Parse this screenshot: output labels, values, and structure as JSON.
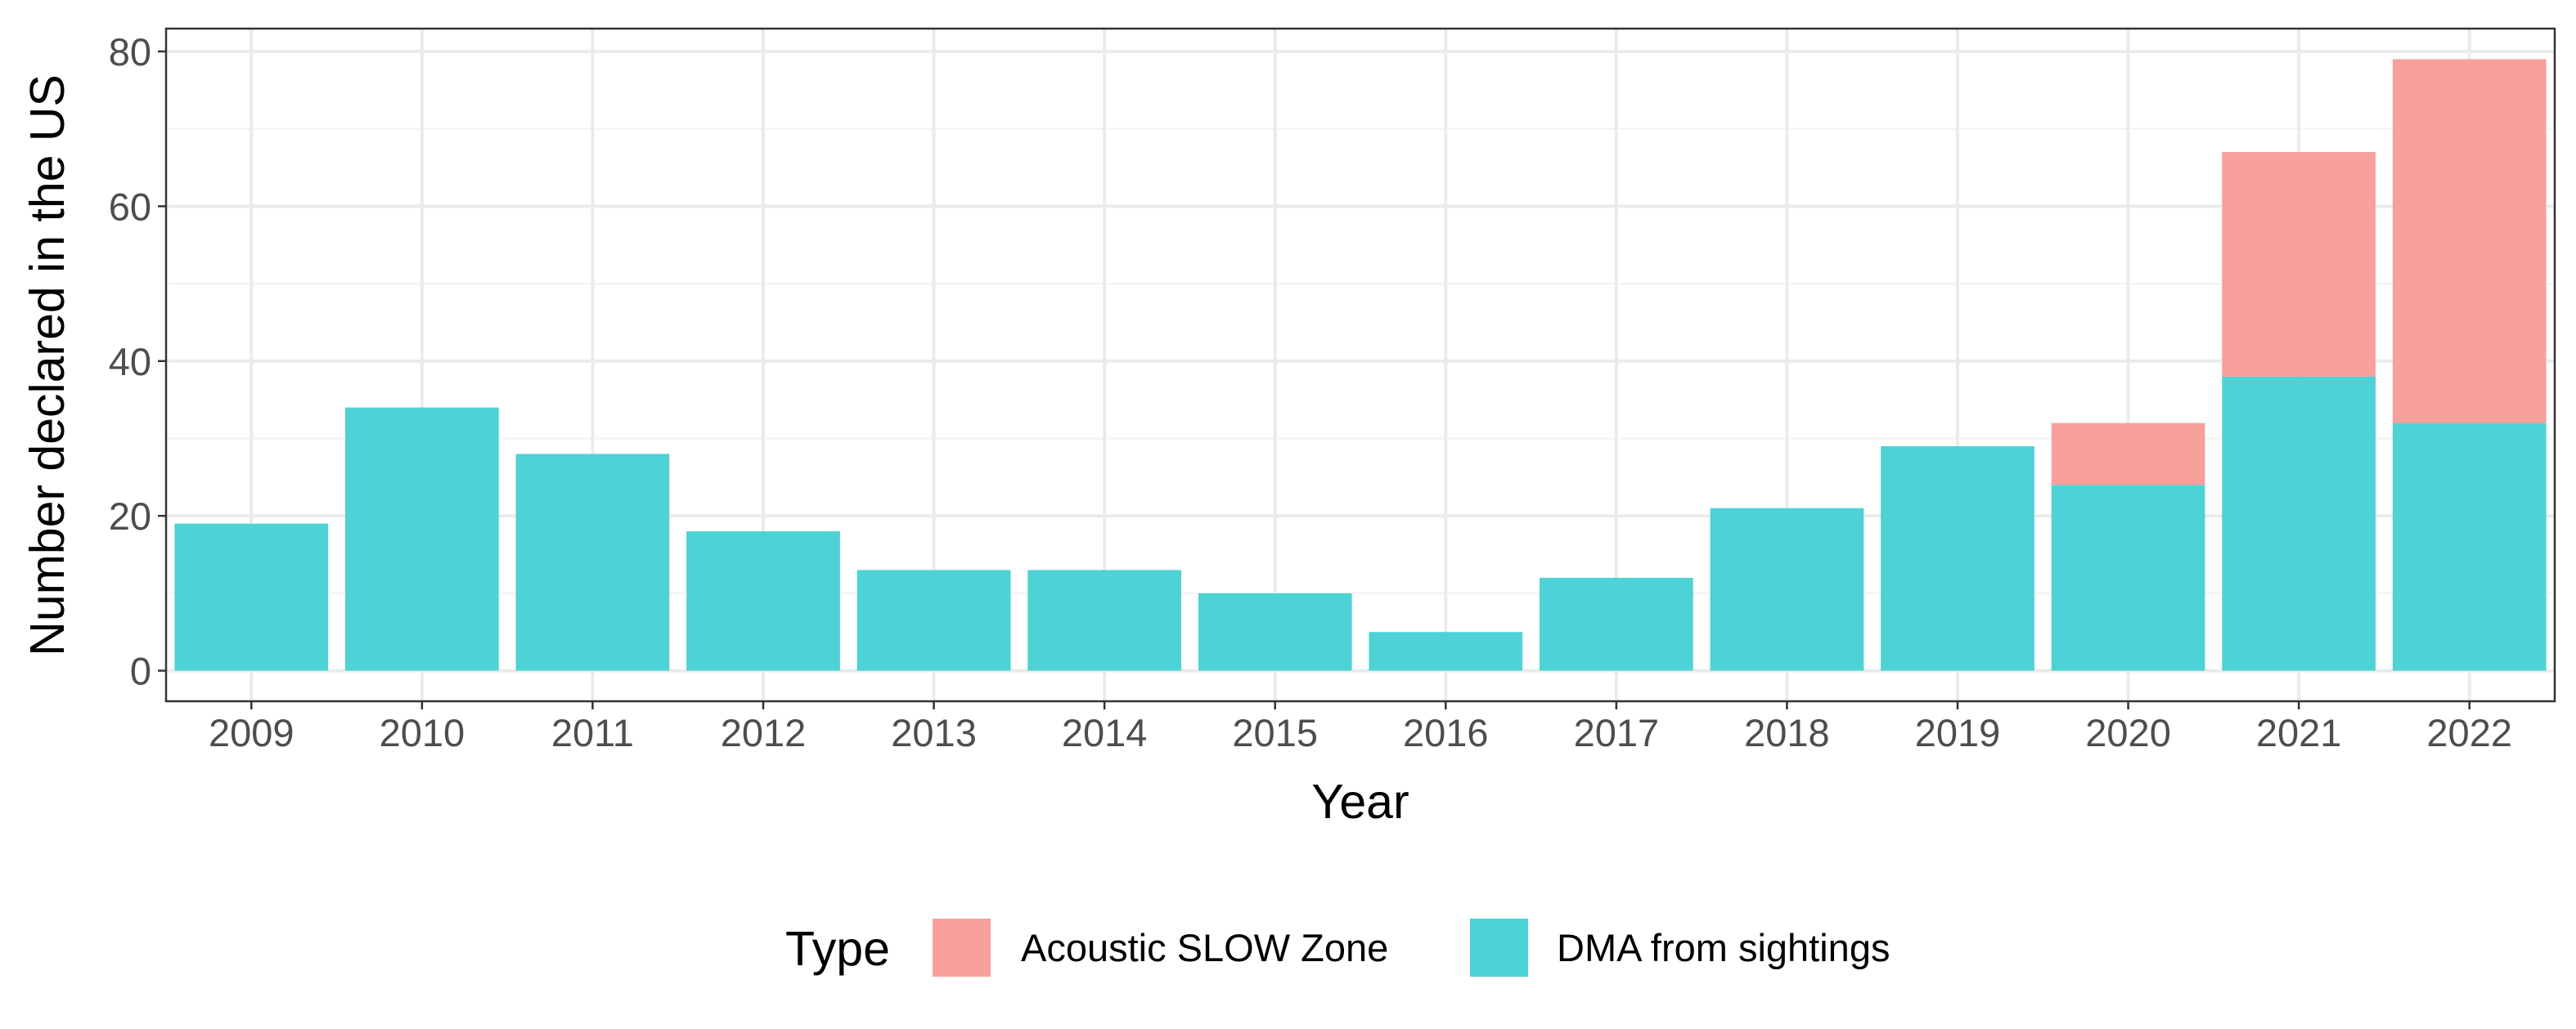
{
  "chart_data": {
    "type": "bar",
    "stacked": true,
    "xlabel": "Year",
    "ylabel": "Number declared in the US",
    "categories": [
      "2009",
      "2010",
      "2011",
      "2012",
      "2013",
      "2014",
      "2015",
      "2016",
      "2017",
      "2018",
      "2019",
      "2020",
      "2021",
      "2022"
    ],
    "series": [
      {
        "name": "DMA from sightings",
        "color": "#4dd2d6",
        "values": [
          19,
          34,
          28,
          18,
          13,
          13,
          10,
          5,
          12,
          21,
          29,
          24,
          38,
          32
        ]
      },
      {
        "name": "Acoustic SLOW Zone",
        "color": "#f8a09b",
        "values": [
          0,
          0,
          0,
          0,
          0,
          0,
          0,
          0,
          0,
          0,
          0,
          8,
          29,
          47
        ]
      }
    ],
    "ylim": [
      -3.95,
      82.95
    ],
    "yticks": [
      0,
      20,
      40,
      60,
      80
    ],
    "grid": true,
    "legend": {
      "title": "Type",
      "position": "bottom",
      "entries": [
        "Acoustic SLOW Zone",
        "DMA from sightings"
      ]
    }
  }
}
